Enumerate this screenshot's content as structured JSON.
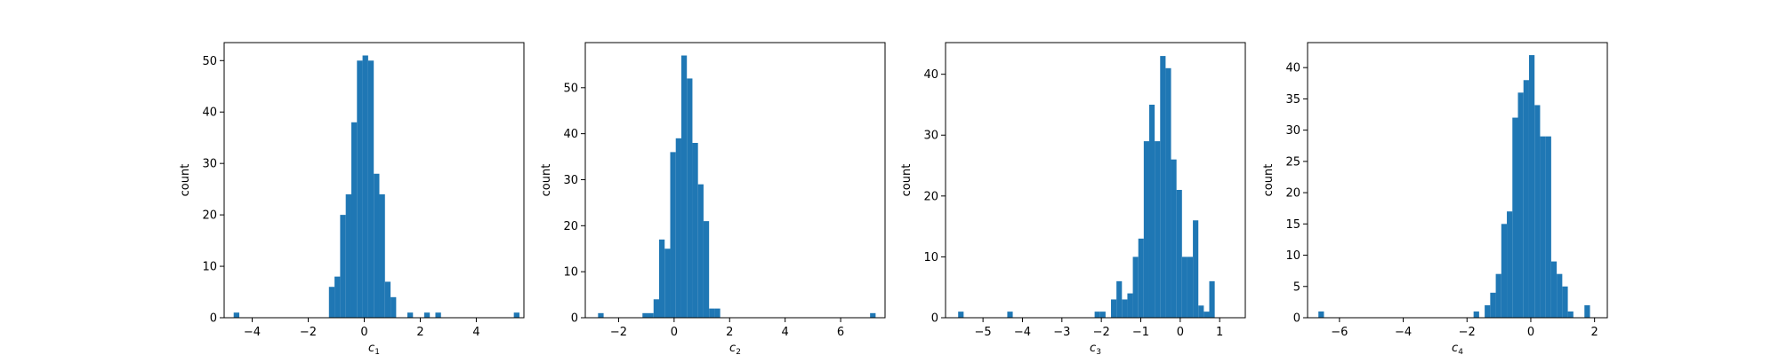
{
  "chart_data": [
    {
      "type": "bar",
      "xlabel": "c",
      "xlabel_sub": "1",
      "ylabel": "count",
      "xlim": [
        -5.0,
        5.7
      ],
      "ylim": [
        0,
        53.5
      ],
      "xticks": [
        -4,
        -2,
        0,
        2,
        4
      ],
      "yticks": [
        0,
        10,
        20,
        30,
        40,
        50
      ],
      "bar_color": "#1f77b4",
      "bins": {
        "start": -4.66,
        "width": 0.2,
        "counts": [
          1,
          0,
          0,
          0,
          0,
          0,
          0,
          0,
          0,
          0,
          0,
          0,
          0,
          0,
          0,
          0,
          0,
          6,
          8,
          20,
          24,
          38,
          50,
          51,
          50,
          28,
          24,
          7,
          4,
          0,
          0,
          1,
          0,
          0,
          1,
          0,
          1,
          0,
          0,
          0,
          0,
          0,
          0,
          0,
          0,
          0,
          0,
          0,
          0,
          0,
          1
        ]
      }
    },
    {
      "type": "bar",
      "xlabel": "c",
      "xlabel_sub": "2",
      "ylabel": "count",
      "xlim": [
        -3.2,
        7.6
      ],
      "ylim": [
        0,
        59.8
      ],
      "xticks": [
        -2,
        0,
        2,
        4,
        6
      ],
      "yticks": [
        0,
        10,
        20,
        30,
        40,
        50
      ],
      "bar_color": "#1f77b4",
      "bins": {
        "start": -2.74,
        "width": 0.2,
        "counts": [
          1,
          0,
          0,
          0,
          0,
          0,
          0,
          0,
          1,
          1,
          4,
          17,
          15,
          36,
          39,
          57,
          52,
          38,
          29,
          21,
          2,
          2,
          0,
          0,
          0,
          0,
          0,
          0,
          0,
          0,
          0,
          0,
          0,
          0,
          0,
          0,
          0,
          0,
          0,
          0,
          0,
          0,
          0,
          0,
          0,
          0,
          0,
          0,
          0,
          1
        ]
      }
    },
    {
      "type": "bar",
      "xlabel": "c",
      "xlabel_sub": "3",
      "ylabel": "count",
      "xlim": [
        -5.95,
        1.65
      ],
      "ylim": [
        0,
        45.2
      ],
      "xticks": [
        -5,
        -4,
        -3,
        -2,
        -1,
        0,
        1
      ],
      "yticks": [
        0,
        10,
        20,
        30,
        40
      ],
      "bar_color": "#1f77b4",
      "bins": {
        "start": -5.63,
        "width": 0.1384,
        "counts": [
          1,
          0,
          0,
          0,
          0,
          0,
          0,
          0,
          0,
          1,
          0,
          0,
          0,
          0,
          0,
          0,
          0,
          0,
          0,
          0,
          0,
          0,
          0,
          0,
          0,
          1,
          1,
          0,
          3,
          6,
          3,
          4,
          10,
          13,
          29,
          35,
          29,
          43,
          41,
          26,
          21,
          10,
          10,
          16,
          2,
          1,
          6
        ]
      }
    },
    {
      "type": "bar",
      "xlabel": "c",
      "xlabel_sub": "4",
      "ylabel": "count",
      "xlim": [
        -7.0,
        2.4
      ],
      "ylim": [
        0,
        44
      ],
      "xticks": [
        -6,
        -4,
        -2,
        0,
        2
      ],
      "yticks": [
        0,
        5,
        10,
        15,
        20,
        25,
        30,
        35,
        40
      ],
      "bar_color": "#1f77b4",
      "bins": {
        "start": -6.66,
        "width": 0.1738,
        "counts": [
          1,
          0,
          0,
          0,
          0,
          0,
          0,
          0,
          0,
          0,
          0,
          0,
          0,
          0,
          0,
          0,
          0,
          0,
          0,
          0,
          0,
          0,
          0,
          0,
          0,
          0,
          0,
          0,
          1,
          0,
          2,
          4,
          7,
          15,
          17,
          32,
          36,
          38,
          42,
          34,
          29,
          29,
          9,
          7,
          5,
          1,
          0,
          0,
          2
        ]
      }
    }
  ]
}
